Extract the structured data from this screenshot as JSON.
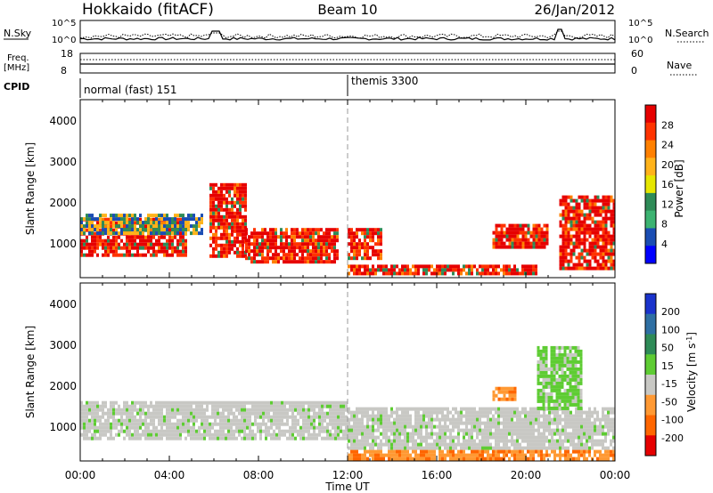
{
  "header": {
    "station": "Hokkaido (fitACF)",
    "beam": "Beam 10",
    "date": "26/Jan/2012"
  },
  "noise_panel": {
    "left_label": "N.Sky",
    "right_label": "N.Search",
    "ticks_left": [
      "10^5",
      "10^0"
    ],
    "ticks_right": [
      "10^5",
      "10^0"
    ]
  },
  "freq_panel": {
    "left_label_top": "Freq.",
    "left_label_unit": "[MHz]",
    "ticks_left": [
      "18",
      "8"
    ],
    "right_label": "Nave",
    "ticks_right": [
      "60",
      "0"
    ]
  },
  "cpid_panel": {
    "label": "CPID",
    "segments": [
      {
        "name": "normal (fast) 151",
        "start_hour": 0,
        "end_hour": 12
      },
      {
        "name": "themis 3300",
        "start_hour": 12,
        "end_hour": 24
      }
    ]
  },
  "power_colorbar": {
    "label": "Power [dB]",
    "ticks": [
      "28",
      "24",
      "20",
      "16",
      "12",
      "8",
      "4"
    ],
    "colors": [
      "#e60000",
      "#ff3300",
      "#ff8000",
      "#ffb31a",
      "#e6e600",
      "#2e8b57",
      "#3cb371",
      "#1a4db3",
      "#0000ff"
    ]
  },
  "velocity_colorbar": {
    "label_prefix": "Velocity [m s",
    "label_exp": "-1",
    "label_suffix": "]",
    "ticks": [
      "200",
      "100",
      "50",
      "15",
      "-15",
      "-50",
      "-100",
      "-200"
    ],
    "colors": [
      "#1a33cc",
      "#2e6fa3",
      "#2e8b57",
      "#5ecc33",
      "#c8c8c4",
      "#ff9933",
      "#ff6600",
      "#e60000"
    ]
  },
  "chart_data": [
    {
      "type": "heatmap",
      "panel": "power",
      "ylabel": "Slant Range [km]",
      "ylim": [
        180,
        4550
      ],
      "yticks": [
        1000,
        2000,
        3000,
        4000
      ],
      "xlim": [
        0,
        24
      ],
      "colorscale": "Power [dB]",
      "regions": [
        {
          "t0": 0.0,
          "t1": 4.8,
          "r0": 700,
          "r1": 1650,
          "level": "high"
        },
        {
          "t0": 0.0,
          "t1": 5.5,
          "r0": 1300,
          "r1": 1750,
          "level": "mid"
        },
        {
          "t0": 5.8,
          "t1": 7.4,
          "r0": 700,
          "r1": 2500,
          "level": "high"
        },
        {
          "t0": 7.4,
          "t1": 11.5,
          "r0": 600,
          "r1": 1400,
          "level": "high"
        },
        {
          "t0": 12.0,
          "t1": 13.5,
          "r0": 700,
          "r1": 1400,
          "level": "high"
        },
        {
          "t0": 12.0,
          "t1": 20.5,
          "r0": 250,
          "r1": 500,
          "level": "high"
        },
        {
          "t0": 18.5,
          "t1": 21.0,
          "r0": 900,
          "r1": 1500,
          "level": "high"
        },
        {
          "t0": 21.5,
          "t1": 24.0,
          "r0": 400,
          "r1": 2200,
          "level": "high"
        }
      ]
    },
    {
      "type": "heatmap",
      "panel": "velocity",
      "ylabel": "Slant Range [km]",
      "ylim": [
        180,
        4550
      ],
      "yticks": [
        1000,
        2000,
        3000,
        4000
      ],
      "xlim": [
        0,
        24
      ],
      "colorscale": "Velocity [m s-1]",
      "regions": [
        {
          "t0": 0.0,
          "t1": 12.0,
          "r0": 700,
          "r1": 1650,
          "level": "near-zero"
        },
        {
          "t0": 12.0,
          "t1": 24.0,
          "r0": 500,
          "r1": 1500,
          "level": "near-zero"
        },
        {
          "t0": 18.5,
          "t1": 19.5,
          "r0": 1700,
          "r1": 2000,
          "level": "away"
        },
        {
          "t0": 12.0,
          "t1": 24.0,
          "r0": 250,
          "r1": 450,
          "level": "away"
        },
        {
          "t0": 20.5,
          "t1": 22.5,
          "r0": 1500,
          "r1": 3000,
          "level": "toward"
        }
      ]
    }
  ],
  "x_axis": {
    "ticks": [
      "00:00",
      "04:00",
      "08:00",
      "12:00",
      "16:00",
      "20:00",
      "00:00"
    ],
    "label": "Time UT"
  }
}
